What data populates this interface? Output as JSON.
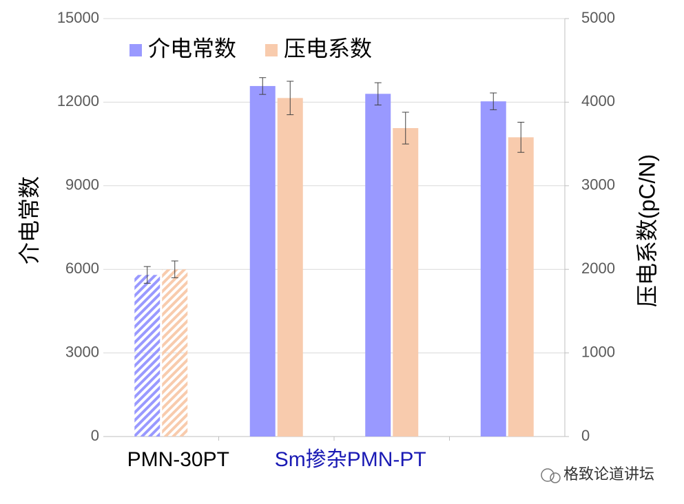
{
  "chart_data": {
    "type": "bar",
    "categories": [
      null,
      null,
      null,
      null
    ],
    "x_group_labels": [
      "PMN-30PT",
      "Sm掺杂PMN-PT"
    ],
    "ylabel": "介电常数",
    "y2label": "压电系数(pC/N)",
    "ylim": [
      0,
      15000
    ],
    "yticks": [
      0,
      3000,
      6000,
      9000,
      12000,
      15000
    ],
    "y2lim": [
      0,
      5000
    ],
    "y2ticks": [
      0,
      1000,
      2000,
      3000,
      4000,
      5000
    ],
    "grid": true,
    "legend": "top-left",
    "series": [
      {
        "name": "介电常数",
        "color": "#9999ff",
        "values": [
          5800,
          12580,
          12300,
          12030
        ],
        "errors": [
          300,
          300,
          400,
          300
        ],
        "hatch": [
          true,
          false,
          false,
          false
        ]
      },
      {
        "name": "压电系数",
        "color": "#f8cbad",
        "axis": "y2",
        "values": [
          2000,
          4050,
          3690,
          3580
        ],
        "errors": [
          100,
          200,
          190,
          180
        ],
        "hatch": [
          true,
          false,
          false,
          false
        ]
      }
    ],
    "watermark": "格致论道讲坛"
  }
}
